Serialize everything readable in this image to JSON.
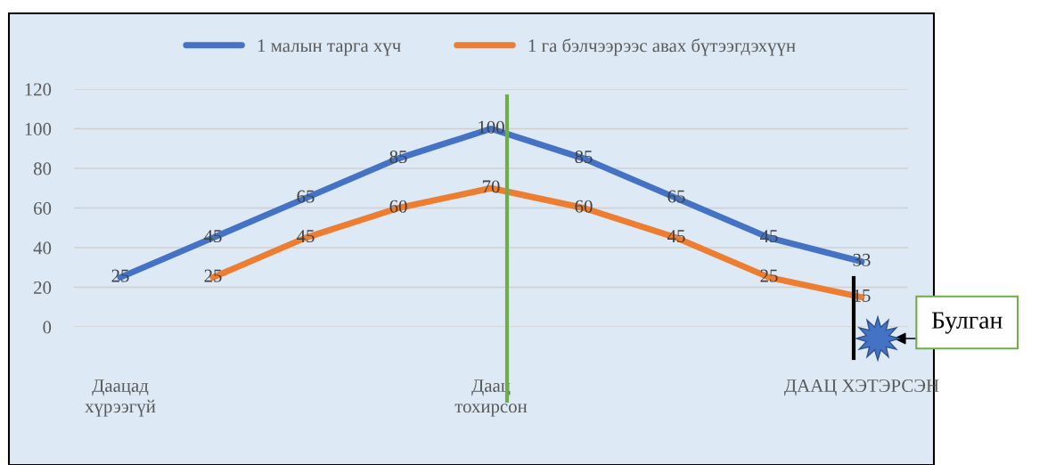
{
  "chart_data": {
    "type": "line",
    "categories": [
      "Даацад\nхүрээгүй",
      null,
      null,
      null,
      "Даац\nтохирсон",
      null,
      null,
      null,
      "ДААЦ ХЭТЭРСЭН"
    ],
    "series": [
      {
        "name": "1 малын тарга хүч",
        "color": "#4472c4",
        "values": [
          25,
          45,
          65,
          85,
          100,
          85,
          65,
          45,
          33
        ]
      },
      {
        "name": "1 га бэлчээрээс авах бүтээгдэхүүн",
        "color": "#ed7d31",
        "values": [
          null,
          25,
          45,
          60,
          70,
          60,
          45,
          25,
          15
        ]
      }
    ],
    "ylim": [
      0,
      120
    ],
    "yticks": [
      0,
      20,
      40,
      60,
      80,
      100,
      120
    ],
    "grid": "y",
    "legend": "top",
    "data_labels": true,
    "marker": "none",
    "line_style": "solid",
    "annotations": [
      "Булган"
    ]
  }
}
